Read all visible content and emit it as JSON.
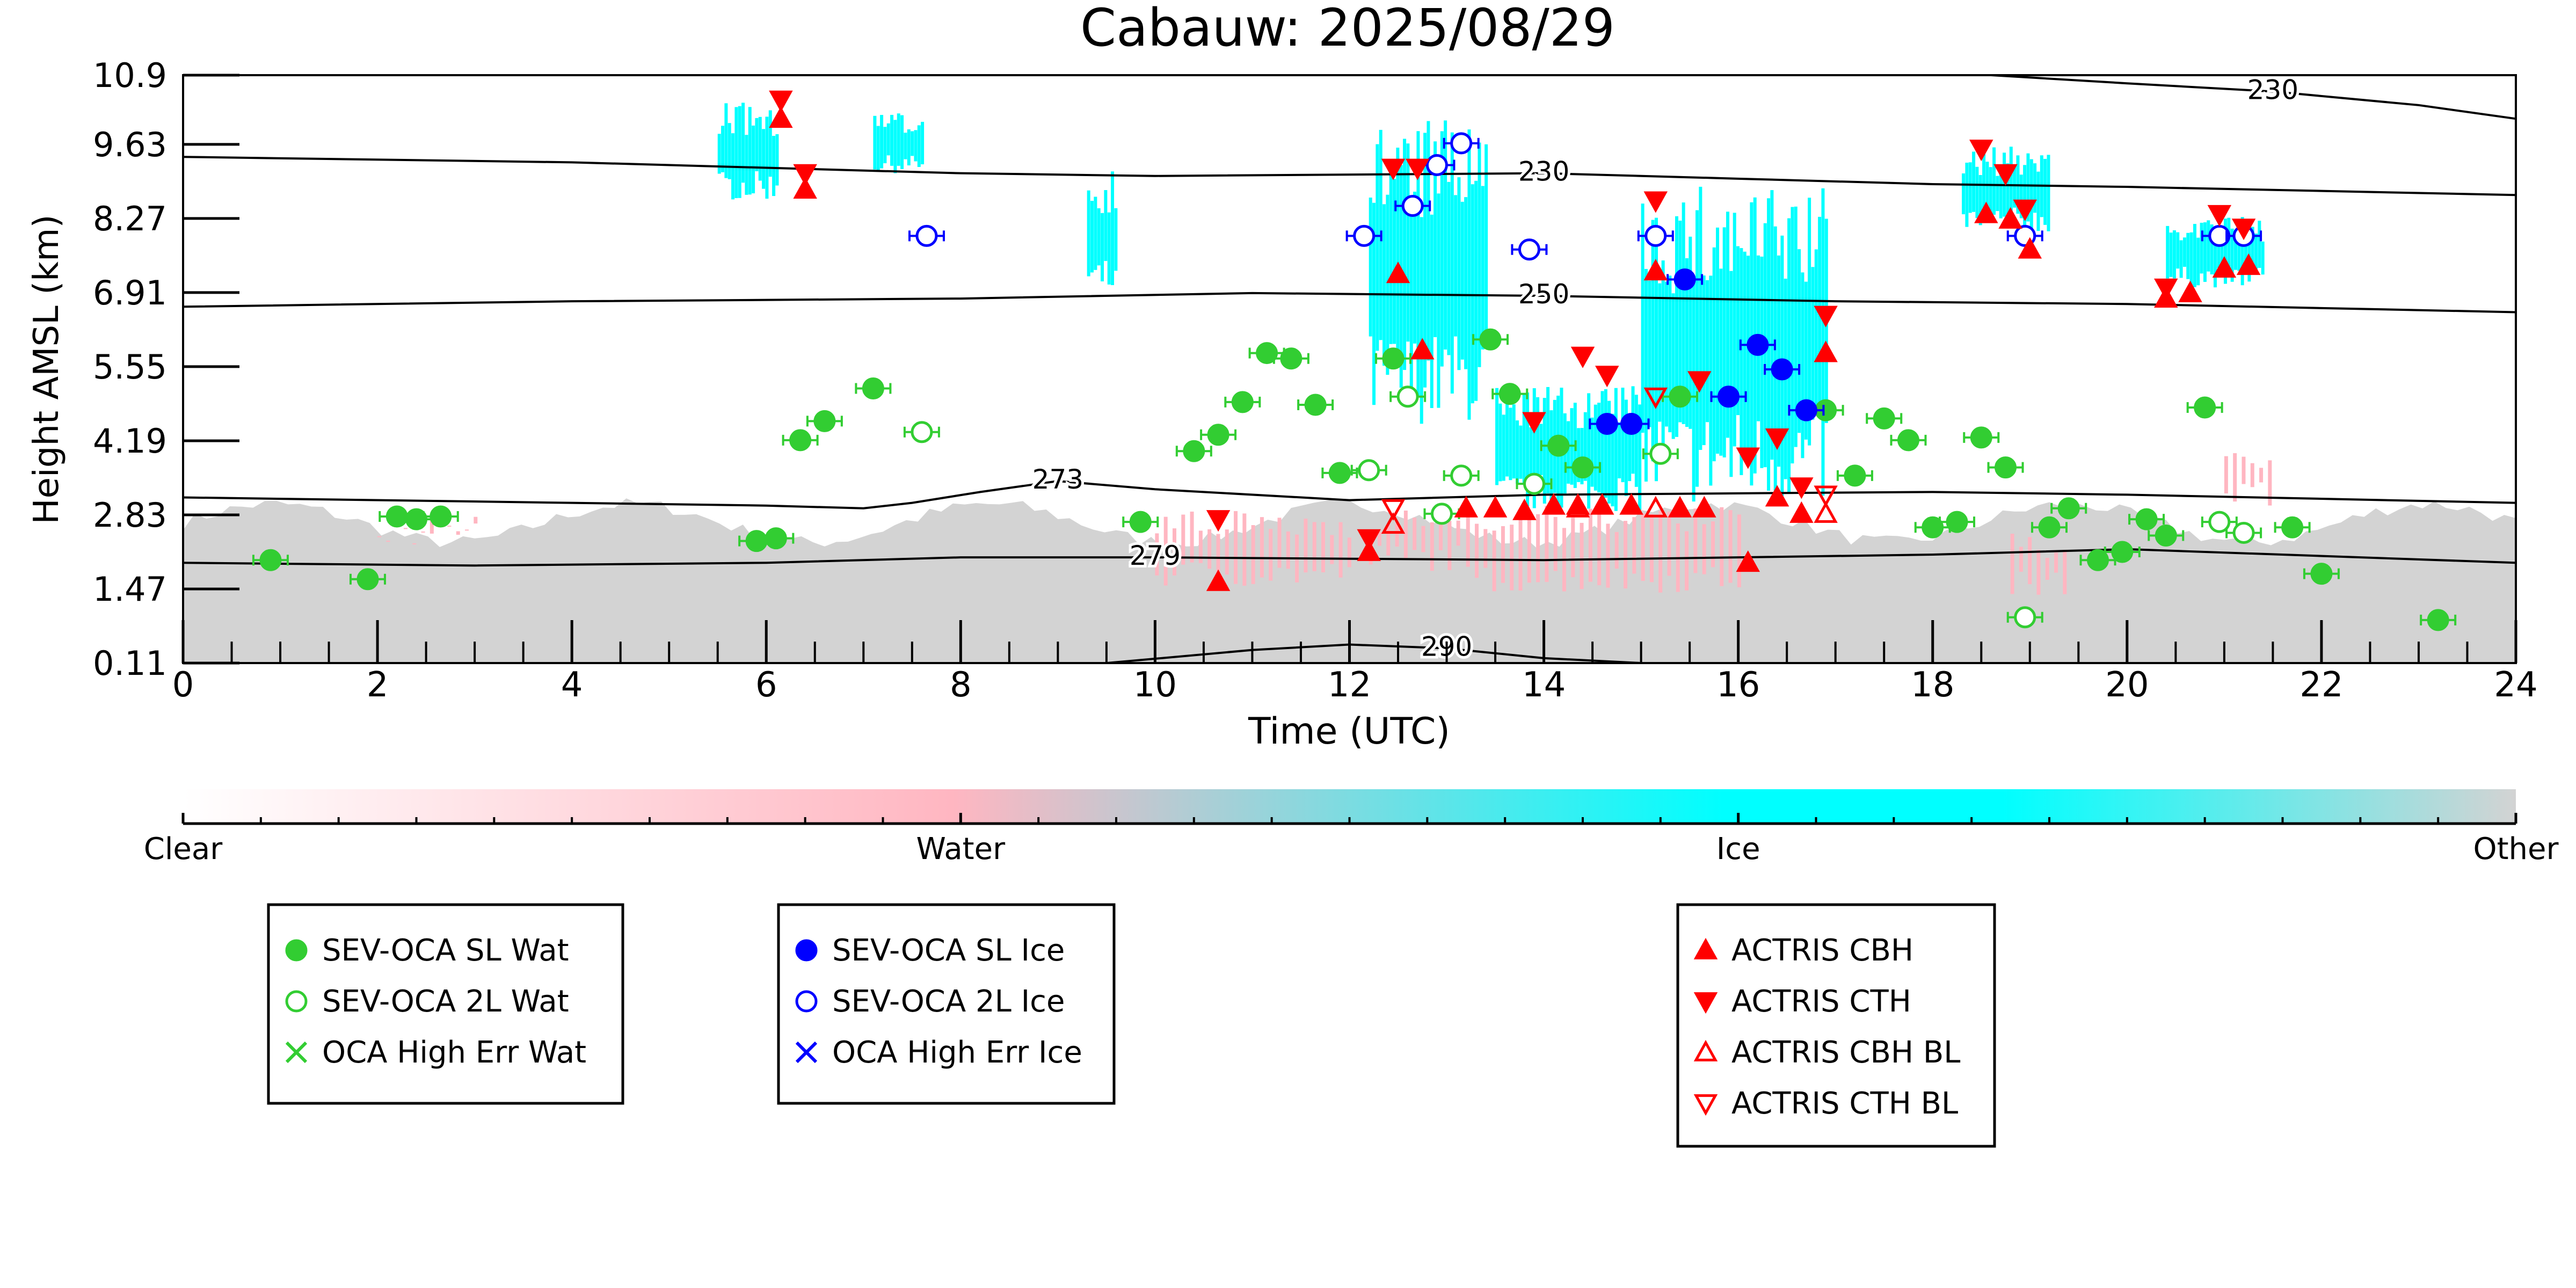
{
  "chart_data": {
    "type": "scatter",
    "title": "Cabauw: 2025/08/29",
    "xlabel": "Time (UTC)",
    "ylabel": "Height AMSL (km)",
    "xlim": [
      0,
      24
    ],
    "ylim": [
      0.11,
      10.9
    ],
    "x_ticks": [
      "0",
      "2",
      "4",
      "6",
      "8",
      "10",
      "12",
      "14",
      "16",
      "18",
      "20",
      "22",
      "24"
    ],
    "y_ticks": [
      "0.11",
      "1.47",
      "2.83",
      "4.19",
      "5.55",
      "6.91",
      "8.27",
      "9.63",
      "10.9"
    ],
    "y_tick_values": [
      0.11,
      1.47,
      2.83,
      4.19,
      5.55,
      6.91,
      8.27,
      9.63,
      10.9
    ],
    "grid": false,
    "colors": {
      "clear": "#ffffff",
      "water": "#ffb6c1",
      "ice": "#00ffff",
      "other": "#d3d3d3",
      "oca_water": "#32cd32",
      "oca_ice": "#0000ff",
      "actris": "#ff0000"
    },
    "colorbar": {
      "labels": [
        "Clear",
        "Water",
        "Ice",
        "Other"
      ]
    },
    "temperature_contours": [
      {
        "label": "230",
        "points": [
          [
            0,
            9.4
          ],
          [
            4,
            9.3
          ],
          [
            8,
            9.1
          ],
          [
            10,
            9.05
          ],
          [
            14,
            9.1
          ],
          [
            16,
            9.0
          ],
          [
            18,
            8.9
          ],
          [
            20,
            8.85
          ],
          [
            24,
            8.7
          ]
        ]
      },
      {
        "label": "250",
        "points": [
          [
            0,
            6.65
          ],
          [
            4,
            6.75
          ],
          [
            8,
            6.8
          ],
          [
            11,
            6.9
          ],
          [
            14,
            6.85
          ],
          [
            17,
            6.75
          ],
          [
            20,
            6.7
          ],
          [
            24,
            6.55
          ]
        ]
      },
      {
        "label": "273",
        "points": [
          [
            0,
            3.15
          ],
          [
            4,
            3.05
          ],
          [
            6,
            3.0
          ],
          [
            7,
            2.95
          ],
          [
            7.5,
            3.05
          ],
          [
            8.2,
            3.25
          ],
          [
            9,
            3.45
          ],
          [
            10,
            3.3
          ],
          [
            12,
            3.1
          ],
          [
            14,
            3.2
          ],
          [
            18,
            3.25
          ],
          [
            20,
            3.2
          ],
          [
            24,
            3.05
          ]
        ]
      },
      {
        "label": "279",
        "points": [
          [
            0,
            1.95
          ],
          [
            3,
            1.9
          ],
          [
            6,
            1.95
          ],
          [
            8,
            2.05
          ],
          [
            10,
            2.05
          ],
          [
            14,
            2.0
          ],
          [
            18,
            2.1
          ],
          [
            20,
            2.2
          ],
          [
            24,
            1.95
          ]
        ]
      },
      {
        "label": "290",
        "points": [
          [
            9.5,
            0.11
          ],
          [
            11,
            0.35
          ],
          [
            12,
            0.45
          ],
          [
            13,
            0.38
          ],
          [
            14,
            0.2
          ],
          [
            15,
            0.11
          ]
        ]
      },
      {
        "label": "230",
        "points": [
          [
            18.6,
            10.9
          ],
          [
            20,
            10.75
          ],
          [
            21.5,
            10.6
          ],
          [
            23,
            10.35
          ],
          [
            24,
            10.1
          ]
        ]
      }
    ],
    "series": [
      {
        "name": "SEV-OCA SL Wat",
        "points": [
          [
            0.9,
            2.0
          ],
          [
            1.9,
            1.65
          ],
          [
            2.2,
            2.8
          ],
          [
            2.4,
            2.75
          ],
          [
            2.65,
            2.8
          ],
          [
            5.9,
            2.35
          ],
          [
            6.1,
            2.4
          ],
          [
            6.35,
            4.2
          ],
          [
            6.6,
            4.55
          ],
          [
            7.1,
            5.15
          ],
          [
            9.85,
            2.7
          ],
          [
            10.4,
            4.0
          ],
          [
            10.65,
            4.3
          ],
          [
            10.9,
            4.9
          ],
          [
            11.15,
            5.8
          ],
          [
            11.4,
            5.7
          ],
          [
            11.65,
            4.85
          ],
          [
            11.9,
            3.6
          ],
          [
            12.45,
            5.7
          ],
          [
            13.45,
            6.05
          ],
          [
            13.65,
            5.05
          ],
          [
            14.15,
            4.1
          ],
          [
            14.4,
            3.7
          ],
          [
            15.4,
            5.0
          ],
          [
            16.9,
            4.75
          ],
          [
            17.2,
            3.55
          ],
          [
            17.5,
            4.6
          ],
          [
            17.75,
            4.2
          ],
          [
            18.0,
            2.6
          ],
          [
            18.25,
            2.7
          ],
          [
            18.5,
            4.25
          ],
          [
            18.75,
            3.7
          ],
          [
            19.2,
            2.6
          ],
          [
            19.4,
            2.95
          ],
          [
            19.7,
            2.0
          ],
          [
            19.95,
            2.15
          ],
          [
            20.2,
            2.75
          ],
          [
            20.4,
            2.45
          ],
          [
            20.8,
            4.8
          ],
          [
            21.7,
            2.6
          ],
          [
            22.0,
            1.75
          ],
          [
            23.2,
            0.9
          ]
        ]
      },
      {
        "name": "SEV-OCA 2L Wat",
        "points": [
          [
            7.6,
            4.35
          ],
          [
            12.2,
            3.65
          ],
          [
            12.6,
            5.0
          ],
          [
            12.95,
            2.85
          ],
          [
            13.15,
            3.55
          ],
          [
            13.9,
            3.4
          ],
          [
            15.2,
            3.95
          ],
          [
            18.95,
            0.95
          ],
          [
            20.95,
            2.7
          ],
          [
            21.2,
            2.5
          ]
        ]
      },
      {
        "name": "SEV-OCA SL Ice",
        "points": [
          [
            14.65,
            4.5
          ],
          [
            14.9,
            4.5
          ],
          [
            15.45,
            7.15
          ],
          [
            15.9,
            5.0
          ],
          [
            16.2,
            5.95
          ],
          [
            16.45,
            5.5
          ],
          [
            16.7,
            4.75
          ]
        ]
      },
      {
        "name": "SEV-OCA 2L Ice",
        "points": [
          [
            7.65,
            7.95
          ],
          [
            12.15,
            7.95
          ],
          [
            12.65,
            8.5
          ],
          [
            12.9,
            9.25
          ],
          [
            13.15,
            9.65
          ],
          [
            13.85,
            7.7
          ],
          [
            15.15,
            7.95
          ],
          [
            18.95,
            7.95
          ],
          [
            20.95,
            7.95
          ],
          [
            21.2,
            7.95
          ]
        ]
      },
      {
        "name": "ACTRIS CBH",
        "points": [
          [
            6.15,
            10.1
          ],
          [
            6.4,
            8.8
          ],
          [
            10.65,
            1.6
          ],
          [
            12.2,
            2.15
          ],
          [
            12.5,
            7.25
          ],
          [
            12.75,
            5.85
          ],
          [
            13.2,
            2.95
          ],
          [
            13.5,
            2.95
          ],
          [
            13.8,
            2.9
          ],
          [
            14.1,
            3.0
          ],
          [
            14.35,
            3.0
          ],
          [
            14.6,
            3.0
          ],
          [
            14.9,
            3.0
          ],
          [
            15.15,
            7.3
          ],
          [
            15.4,
            2.95
          ],
          [
            15.65,
            2.95
          ],
          [
            16.1,
            1.95
          ],
          [
            16.4,
            3.15
          ],
          [
            16.65,
            2.85
          ],
          [
            16.9,
            5.8
          ],
          [
            18.55,
            8.35
          ],
          [
            18.8,
            8.25
          ],
          [
            19.0,
            7.7
          ],
          [
            20.4,
            6.8
          ],
          [
            20.65,
            6.9
          ],
          [
            21.0,
            7.35
          ],
          [
            21.25,
            7.4
          ]
        ]
      },
      {
        "name": "ACTRIS CTH",
        "points": [
          [
            6.15,
            10.45
          ],
          [
            6.4,
            9.1
          ],
          [
            10.65,
            2.75
          ],
          [
            12.2,
            2.4
          ],
          [
            12.45,
            9.2
          ],
          [
            12.7,
            9.2
          ],
          [
            13.9,
            4.55
          ],
          [
            14.4,
            5.75
          ],
          [
            14.65,
            5.4
          ],
          [
            15.15,
            8.6
          ],
          [
            15.6,
            5.3
          ],
          [
            16.1,
            3.9
          ],
          [
            16.4,
            4.25
          ],
          [
            16.65,
            3.35
          ],
          [
            16.9,
            6.5
          ],
          [
            18.5,
            9.55
          ],
          [
            18.75,
            9.1
          ],
          [
            18.95,
            8.45
          ],
          [
            20.4,
            7.0
          ],
          [
            20.95,
            8.35
          ],
          [
            21.2,
            8.1
          ]
        ]
      },
      {
        "name": "ACTRIS CBH BL",
        "points": [
          [
            12.45,
            2.65
          ],
          [
            14.35,
            2.95
          ],
          [
            15.15,
            2.95
          ],
          [
            16.9,
            2.85
          ]
        ]
      },
      {
        "name": "ACTRIS CTH BL",
        "points": [
          [
            12.45,
            2.95
          ],
          [
            15.15,
            5.0
          ],
          [
            16.9,
            3.2
          ]
        ]
      }
    ],
    "legends": [
      [
        "SEV-OCA SL Wat",
        "SEV-OCA 2L Wat",
        "OCA High Err Wat"
      ],
      [
        "SEV-OCA SL Ice",
        "SEV-OCA 2L Ice",
        "OCA High Err Ice"
      ],
      [
        "ACTRIS CBH",
        "ACTRIS CTH",
        "ACTRIS CBH BL",
        "ACTRIS CTH BL"
      ]
    ]
  }
}
